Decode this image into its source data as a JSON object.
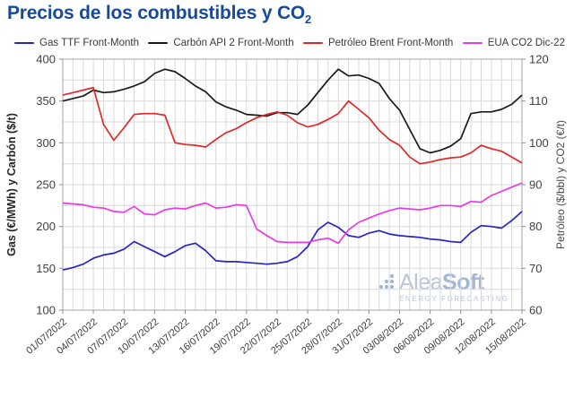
{
  "title": {
    "main": "Precios de los combustibles y CO",
    "sub": "2"
  },
  "legend": [
    {
      "label": "Gas TTF Front-Month",
      "color": "#2424c8"
    },
    {
      "label": "Carbón API 2 Front-Month",
      "color": "#1a1a1a"
    },
    {
      "label": "Petróleo Brent Front-Month",
      "color": "#e02828"
    },
    {
      "label": "EUA CO2 Dic-22",
      "color": "#e93ae9"
    }
  ],
  "watermark": {
    "name_a": "Alea",
    "name_b": "Soft",
    "tagline": "ENERGY FORECASTING"
  },
  "colors": {
    "title": "#17499d",
    "grid": "#d9d9d9",
    "frame": "#a6a6a6"
  },
  "chart_data": {
    "type": "line",
    "title": "Precios de los combustibles y CO2",
    "x": [
      "01/07/2022",
      "02/07/2022",
      "03/07/2022",
      "04/07/2022",
      "05/07/2022",
      "06/07/2022",
      "07/07/2022",
      "08/07/2022",
      "09/07/2022",
      "10/07/2022",
      "11/07/2022",
      "12/07/2022",
      "13/07/2022",
      "14/07/2022",
      "15/07/2022",
      "16/07/2022",
      "17/07/2022",
      "18/07/2022",
      "19/07/2022",
      "20/07/2022",
      "21/07/2022",
      "22/07/2022",
      "23/07/2022",
      "24/07/2022",
      "25/07/2022",
      "26/07/2022",
      "27/07/2022",
      "28/07/2022",
      "29/07/2022",
      "30/07/2022",
      "31/07/2022",
      "01/08/2022",
      "02/08/2022",
      "03/08/2022",
      "04/08/2022",
      "05/08/2022",
      "06/08/2022",
      "07/08/2022",
      "08/08/2022",
      "09/08/2022",
      "10/08/2022",
      "11/08/2022",
      "12/08/2022",
      "13/08/2022",
      "14/08/2022",
      "15/08/2022"
    ],
    "x_tick_every": 3,
    "axes": {
      "left": {
        "label": "Gas (€/MWh) y Carbón ($/t)",
        "min": 100,
        "max": 400,
        "tick_step": 50,
        "grid_step": 25
      },
      "right": {
        "label": "Petróleo ($/bbl) y CO2 (€/t)",
        "min": 60,
        "max": 120,
        "tick_step": 10
      }
    },
    "grid": true,
    "legend_position": "top",
    "series": [
      {
        "name": "Gas TTF Front-Month",
        "axis": "left",
        "unit": "€/MWh",
        "color": "#2424c8",
        "values": [
          148,
          151,
          155,
          162,
          166,
          168,
          173,
          182,
          176,
          170,
          164,
          170,
          177,
          180,
          171,
          159,
          158,
          158,
          157,
          156,
          155,
          156,
          158,
          164,
          176,
          196,
          205,
          199,
          189,
          187,
          192,
          195,
          191,
          189,
          188,
          187,
          185,
          184,
          182,
          181,
          193,
          201,
          200,
          198,
          207,
          218
        ]
      },
      {
        "name": "Carbón API 2 Front-Month",
        "axis": "left",
        "unit": "$/t",
        "color": "#1a1a1a",
        "values": [
          350,
          353,
          356,
          363,
          360,
          361,
          364,
          368,
          373,
          383,
          388,
          385,
          377,
          368,
          361,
          349,
          343,
          339,
          334,
          333,
          332,
          336,
          336,
          334,
          345,
          360,
          375,
          388,
          380,
          381,
          377,
          371,
          353,
          339,
          316,
          293,
          288,
          291,
          296,
          305,
          335,
          337,
          337,
          340,
          346,
          357
        ]
      },
      {
        "name": "Petróleo Brent Front-Month",
        "axis": "right",
        "unit": "$/bbl",
        "color": "#e02828",
        "values": [
          111.4,
          112.0,
          112.6,
          113.2,
          104.4,
          100.6,
          103.6,
          106.8,
          107.0,
          107.0,
          106.6,
          100.0,
          99.6,
          99.4,
          99.0,
          100.8,
          102.4,
          103.4,
          104.8,
          106.0,
          106.8,
          107.4,
          106.6,
          104.8,
          103.8,
          104.4,
          105.6,
          107.0,
          110.0,
          108.0,
          106.0,
          103.0,
          100.8,
          99.4,
          96.6,
          95.0,
          95.4,
          96.0,
          96.4,
          96.6,
          97.6,
          99.4,
          98.6,
          98.0,
          96.6,
          95.2
        ]
      },
      {
        "name": "EUA CO2 Dic-22",
        "axis": "right",
        "unit": "€/t",
        "color": "#e93ae9",
        "values": [
          85.6,
          85.4,
          85.2,
          84.6,
          84.4,
          83.6,
          83.4,
          84.8,
          83.0,
          82.8,
          84.0,
          84.4,
          84.2,
          85.0,
          85.6,
          84.4,
          84.6,
          85.2,
          85.0,
          79.4,
          77.8,
          76.4,
          76.2,
          76.2,
          76.2,
          76.8,
          77.2,
          76.0,
          79.2,
          81.0,
          82.0,
          83.0,
          83.8,
          84.4,
          84.2,
          84.0,
          84.4,
          85.0,
          85.0,
          84.8,
          86.0,
          85.8,
          87.4,
          88.4,
          89.4,
          90.4
        ]
      }
    ]
  }
}
